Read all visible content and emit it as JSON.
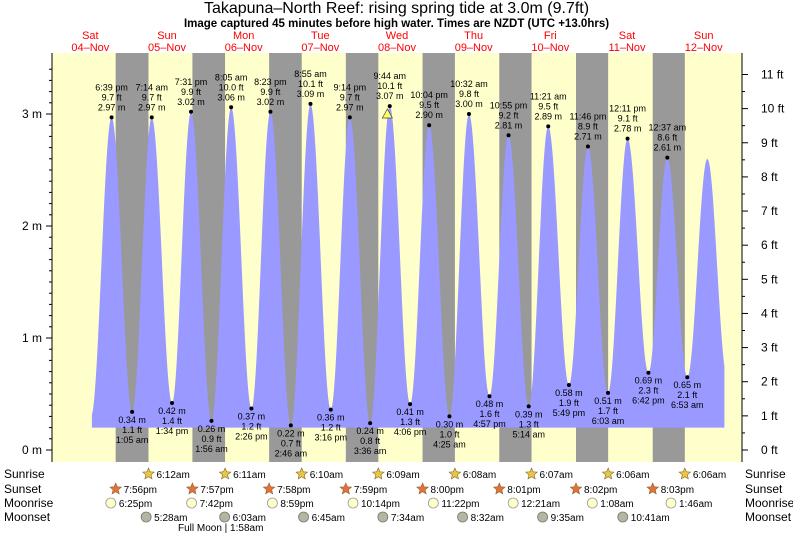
{
  "header": {
    "title": "Takapuna–North Reef: rising  spring tide at 3.0m (9.7ft)",
    "subtitle": "Image captured 45 minutes before high water. Times are NZDT (UTC +13.0hrs)"
  },
  "colors": {
    "day": "#ffffcc",
    "night": "#999999",
    "tide": "#9999ff",
    "day_label": "#ff0000",
    "sun": "#e8c840",
    "sunset_star": "#e87038",
    "moonrise": "#ffffcc",
    "moonset": "#b0b8a0"
  },
  "days": [
    {
      "dow": "Sat",
      "date": "04–Nov"
    },
    {
      "dow": "Sun",
      "date": "05–Nov"
    },
    {
      "dow": "Mon",
      "date": "06–Nov"
    },
    {
      "dow": "Tue",
      "date": "07–Nov"
    },
    {
      "dow": "Wed",
      "date": "08–Nov"
    },
    {
      "dow": "Thu",
      "date": "09–Nov"
    },
    {
      "dow": "Fri",
      "date": "10–Nov"
    },
    {
      "dow": "Sat",
      "date": "11–Nov"
    },
    {
      "dow": "Sun",
      "date": "12–Nov"
    }
  ],
  "chart_data": {
    "type": "area",
    "title": "Takapuna–North Reef: rising  spring tide at 3.0m (9.7ft)",
    "x_range_hours": [
      0,
      216
    ],
    "ylim_m": [
      -0.05,
      3.55
    ],
    "left_axis": {
      "unit": "m",
      "ticks": [
        {
          "v": 0,
          "label": "0 m"
        },
        {
          "v": 1,
          "label": "1 m"
        },
        {
          "v": 2,
          "label": "2 m"
        },
        {
          "v": 3,
          "label": "3 m"
        }
      ]
    },
    "right_axis": {
      "unit": "ft",
      "ticks": [
        "0 ft",
        "1 ft",
        "2 ft",
        "3 ft",
        "4 ft",
        "5 ft",
        "6 ft",
        "7 ft",
        "8 ft",
        "9 ft",
        "10 ft",
        "11 ft"
      ]
    },
    "tides": [
      {
        "type": "high",
        "t": 18.65,
        "time": "6:39 pm",
        "ft": "9.7 ft",
        "m": 2.97
      },
      {
        "type": "low",
        "t": 25.08,
        "time": "1:05 am",
        "ft": "1.1 ft",
        "m": 0.34
      },
      {
        "type": "high",
        "t": 31.23,
        "time": "7:14 am",
        "ft": "9.7 ft",
        "m": 2.97
      },
      {
        "type": "low",
        "t": 37.57,
        "time": "1:34 pm",
        "ft": "1.4 ft",
        "m": 0.42
      },
      {
        "type": "high",
        "t": 43.52,
        "time": "7:31 pm",
        "ft": "9.9 ft",
        "m": 3.02
      },
      {
        "type": "low",
        "t": 49.93,
        "time": "1:56 am",
        "ft": "0.9 ft",
        "m": 0.26
      },
      {
        "type": "high",
        "t": 56.08,
        "time": "8:05 am",
        "ft": "10.0 ft",
        "m": 3.06
      },
      {
        "type": "low",
        "t": 62.43,
        "time": "2:26 pm",
        "ft": "1.2 ft",
        "m": 0.37
      },
      {
        "type": "high",
        "t": 68.38,
        "time": "8:23 pm",
        "ft": "9.9 ft",
        "m": 3.02
      },
      {
        "type": "low",
        "t": 74.77,
        "time": "2:46 am",
        "ft": "0.7 ft",
        "m": 0.22
      },
      {
        "type": "high",
        "t": 80.92,
        "time": "8:55 am",
        "ft": "10.1 ft",
        "m": 3.09
      },
      {
        "type": "low",
        "t": 87.27,
        "time": "3:16 pm",
        "ft": "1.2 ft",
        "m": 0.36
      },
      {
        "type": "high",
        "t": 93.23,
        "time": "9:14 pm",
        "ft": "9.7 ft",
        "m": 2.97
      },
      {
        "type": "low",
        "t": 99.6,
        "time": "3:36 am",
        "ft": "0.8 ft",
        "m": 0.24
      },
      {
        "type": "high",
        "t": 105.73,
        "time": "9:44 am",
        "ft": "10.1 ft",
        "m": 3.07
      },
      {
        "type": "low",
        "t": 112.1,
        "time": "4:06 pm",
        "ft": "1.3 ft",
        "m": 0.41
      },
      {
        "type": "high",
        "t": 118.07,
        "time": "10:04 pm",
        "ft": "9.5 ft",
        "m": 2.9
      },
      {
        "type": "low",
        "t": 124.42,
        "time": "4:25 am",
        "ft": "1.0 ft",
        "m": 0.3
      },
      {
        "type": "high",
        "t": 130.53,
        "time": "10:32 am",
        "ft": "9.8 ft",
        "m": 3.0
      },
      {
        "type": "low",
        "t": 136.95,
        "time": "4:57 pm",
        "ft": "1.6 ft",
        "m": 0.48
      },
      {
        "type": "high",
        "t": 142.92,
        "time": "10:55 pm",
        "ft": "9.2 ft",
        "m": 2.81
      },
      {
        "type": "low",
        "t": 149.23,
        "time": "5:14 am",
        "ft": "1.3 ft",
        "m": 0.39
      },
      {
        "type": "high",
        "t": 155.35,
        "time": "11:21 am",
        "ft": "9.5 ft",
        "m": 2.89
      },
      {
        "type": "low",
        "t": 161.82,
        "time": "5:49 pm",
        "ft": "1.9 ft",
        "m": 0.58
      },
      {
        "type": "high",
        "t": 167.77,
        "time": "11:46 pm",
        "ft": "8.9 ft",
        "m": 2.71
      },
      {
        "type": "low",
        "t": 174.05,
        "time": "6:03 am",
        "ft": "1.7 ft",
        "m": 0.51
      },
      {
        "type": "high",
        "t": 180.18,
        "time": "12:11 pm",
        "ft": "9.1 ft",
        "m": 2.78
      },
      {
        "type": "low",
        "t": 186.7,
        "time": "6:42 pm",
        "ft": "2.3 ft",
        "m": 0.69
      },
      {
        "type": "high",
        "t": 192.62,
        "time": "12:37 am",
        "ft": "8.6 ft",
        "m": 2.61
      },
      {
        "type": "low",
        "t": 198.88,
        "time": "6:53 am",
        "ft": "2.1 ft",
        "m": 0.65
      }
    ],
    "now_marker": {
      "t": 104.98,
      "m": 3.0
    },
    "nights": [
      {
        "start": 19.93,
        "end": 30.2
      },
      {
        "start": 43.95,
        "end": 54.18
      },
      {
        "start": 67.97,
        "end": 78.17
      },
      {
        "start": 91.98,
        "end": 102.15
      },
      {
        "start": 116.0,
        "end": 126.13
      },
      {
        "start": 140.02,
        "end": 150.12
      },
      {
        "start": 164.03,
        "end": 174.1
      },
      {
        "start": 188.05,
        "end": 198.1
      }
    ],
    "visible_range_hours": [
      12.5,
      210.5
    ],
    "sunrise": [
      {
        "t": 30.2,
        "label": "6:12am"
      },
      {
        "t": 54.18,
        "label": "6:11am"
      },
      {
        "t": 78.17,
        "label": "6:10am"
      },
      {
        "t": 102.15,
        "label": "6:09am"
      },
      {
        "t": 126.13,
        "label": "6:08am"
      },
      {
        "t": 150.12,
        "label": "6:07am"
      },
      {
        "t": 174.1,
        "label": "6:06am"
      },
      {
        "t": 198.1,
        "label": "6:06am"
      }
    ],
    "sunset": [
      {
        "t": 19.93,
        "label": "7:56pm"
      },
      {
        "t": 43.95,
        "label": "7:57pm"
      },
      {
        "t": 67.97,
        "label": "7:58pm"
      },
      {
        "t": 91.98,
        "label": "7:59pm"
      },
      {
        "t": 116.0,
        "label": "8:00pm"
      },
      {
        "t": 140.02,
        "label": "8:01pm"
      },
      {
        "t": 164.03,
        "label": "8:02pm"
      },
      {
        "t": 188.05,
        "label": "8:03pm"
      }
    ],
    "moonrise": [
      {
        "t": 18.42,
        "label": "6:25pm"
      },
      {
        "t": 43.7,
        "label": "7:42pm"
      },
      {
        "t": 68.98,
        "label": "8:59pm"
      },
      {
        "t": 94.23,
        "label": "10:14pm"
      },
      {
        "t": 119.37,
        "label": "11:22pm"
      },
      {
        "t": 144.35,
        "label": "12:21am"
      },
      {
        "t": 169.13,
        "label": "1:08am"
      },
      {
        "t": 193.77,
        "label": "1:46am"
      }
    ],
    "moonset": [
      {
        "t": 29.47,
        "label": "5:28am"
      },
      {
        "t": 54.05,
        "label": "6:03am"
      },
      {
        "t": 78.75,
        "label": "6:45am"
      },
      {
        "t": 103.57,
        "label": "7:34am"
      },
      {
        "t": 128.53,
        "label": "8:32am"
      },
      {
        "t": 153.58,
        "label": "9:35am"
      },
      {
        "t": 178.68,
        "label": "10:41am"
      }
    ],
    "full_moon": {
      "label": "Full Moon | 1:58am"
    },
    "bottom_labels": [
      "Sunrise",
      "Sunset",
      "Moonrise",
      "Moonset"
    ]
  }
}
